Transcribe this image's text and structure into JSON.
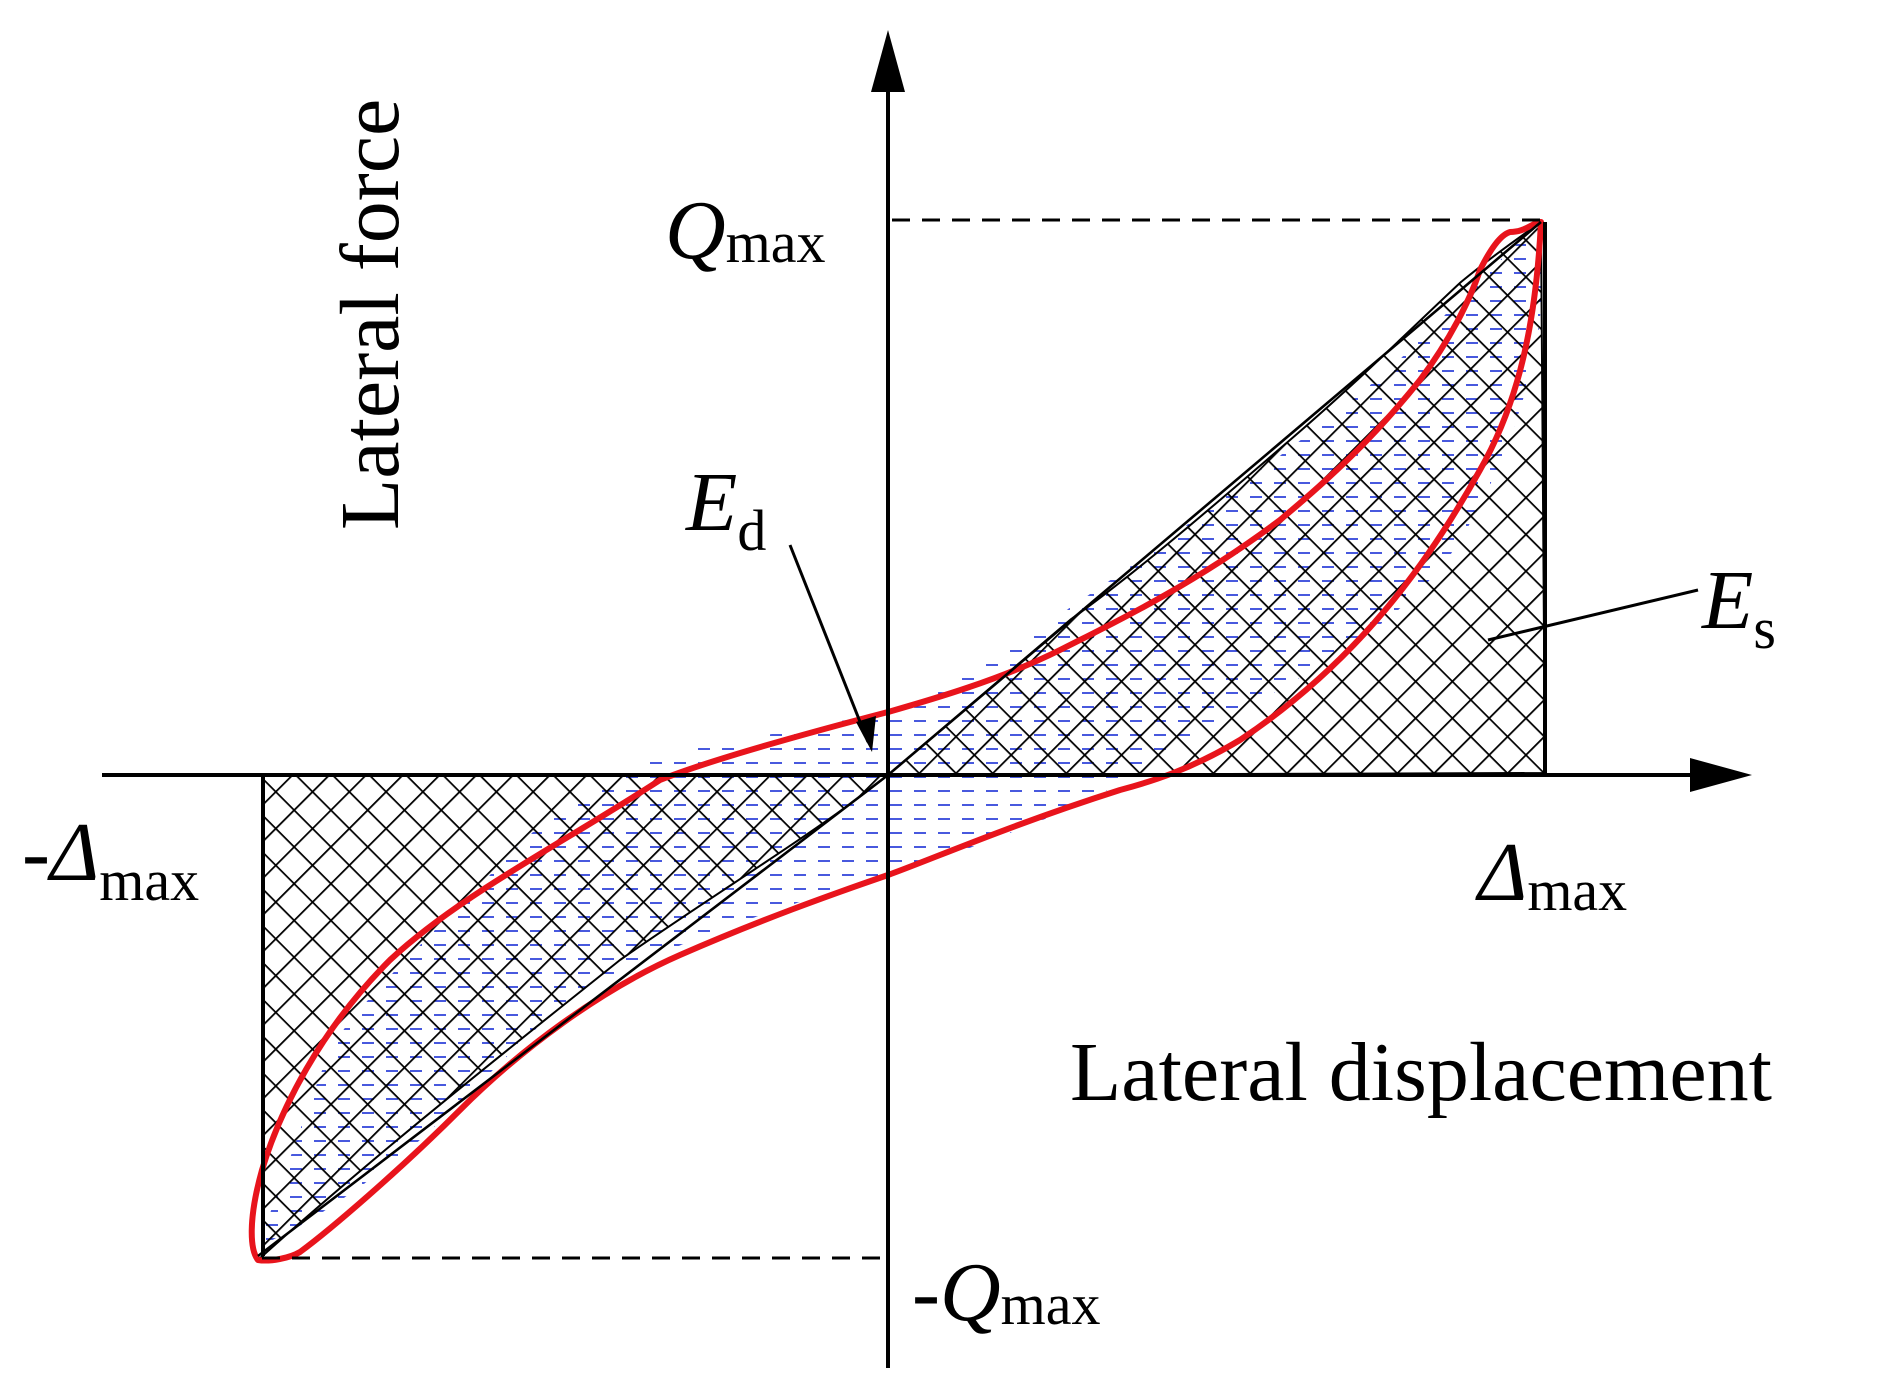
{
  "axes": {
    "y_label": "Lateral force",
    "x_label": "Lateral displacement"
  },
  "labels": {
    "q_max": {
      "symbol": "Q",
      "subscript": "max"
    },
    "neg_q_max": {
      "sign": "-",
      "symbol": "Q",
      "subscript": "max"
    },
    "delta_max": {
      "symbol": "Δ",
      "subscript": "max"
    },
    "neg_delta_max": {
      "sign": "-",
      "symbol": "Δ",
      "subscript": "max"
    },
    "dissipated_energy": {
      "symbol": "E",
      "subscript": "d"
    },
    "strain_energy": {
      "symbol": "E",
      "subscript": "s"
    }
  },
  "colors": {
    "loop": "#e8141c",
    "axis": "#000000",
    "crosshatch": "#000000",
    "dash_fill": "#1a2fd6"
  }
}
